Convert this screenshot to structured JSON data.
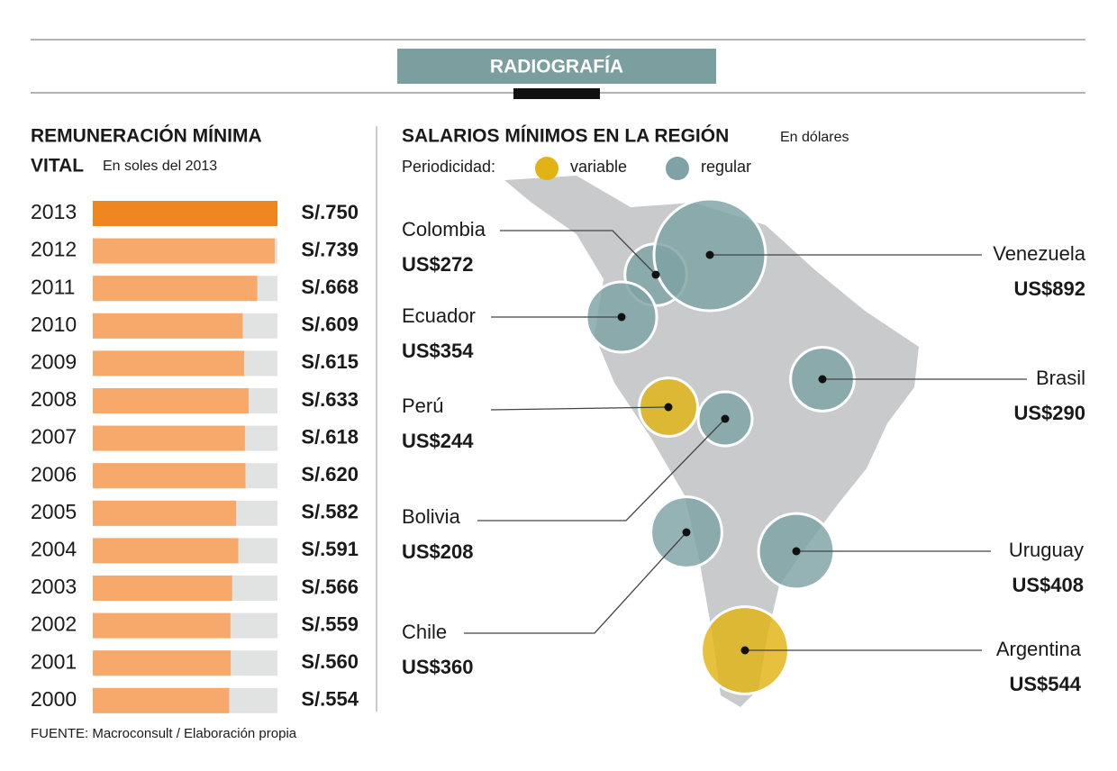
{
  "header": {
    "title": "RADIOGRAFÍA"
  },
  "chart_data": [
    {
      "type": "hbar",
      "title": [
        "REMUNERACIÓN MÍNIMA",
        "VITAL"
      ],
      "subtitle": "En soles del 2013",
      "categories": [
        "2013",
        "2012",
        "2011",
        "2010",
        "2009",
        "2008",
        "2007",
        "2006",
        "2005",
        "2004",
        "2003",
        "2002",
        "2001",
        "2000"
      ],
      "values": [
        750,
        739,
        668,
        609,
        615,
        633,
        618,
        620,
        582,
        591,
        566,
        559,
        560,
        554
      ],
      "value_labels": [
        "S/.750",
        "S/.739",
        "S/.668",
        "S/.609",
        "S/.615",
        "S/.633",
        "S/.618",
        "S/.620",
        "S/.582",
        "S/.591",
        "S/.566",
        "S/.559",
        "S/.560",
        "S/.554"
      ],
      "colors": [
        "#f0861f",
        "#f7a96c",
        "#f7a96c",
        "#f7a96c",
        "#f7a96c",
        "#f7a96c",
        "#f7a96c",
        "#f7a96c",
        "#f7a96c",
        "#f7a96c",
        "#f7a96c",
        "#f7a96c",
        "#f7a96c",
        "#f7a96c"
      ],
      "track_color": "#e1e2e2",
      "xlim": [
        0,
        750
      ]
    },
    {
      "type": "bubble-map",
      "title": "SALARIOS MÍNIMOS EN LA REGIÓN",
      "subtitle": "En dólares",
      "legend_title": "Periodicidad:",
      "series": [
        {
          "name": "variable",
          "color": "#e2b314",
          "categories": [
            "Perú",
            "Argentina"
          ],
          "values": [
            244,
            544
          ],
          "value_labels": [
            "US$244",
            "US$544"
          ]
        },
        {
          "name": "regular",
          "color": "#7ea2a5",
          "categories": [
            "Colombia",
            "Venezuela",
            "Ecuador",
            "Bolivia",
            "Brasil",
            "Chile",
            "Uruguay"
          ],
          "values": [
            272,
            892,
            354,
            208,
            290,
            360,
            408
          ],
          "value_labels": [
            "US$272",
            "US$892",
            "US$354",
            "US$208",
            "US$290",
            "US$360",
            "US$408"
          ]
        }
      ]
    }
  ],
  "source": "FUENTE: Macroconsult / Elaboración propia"
}
